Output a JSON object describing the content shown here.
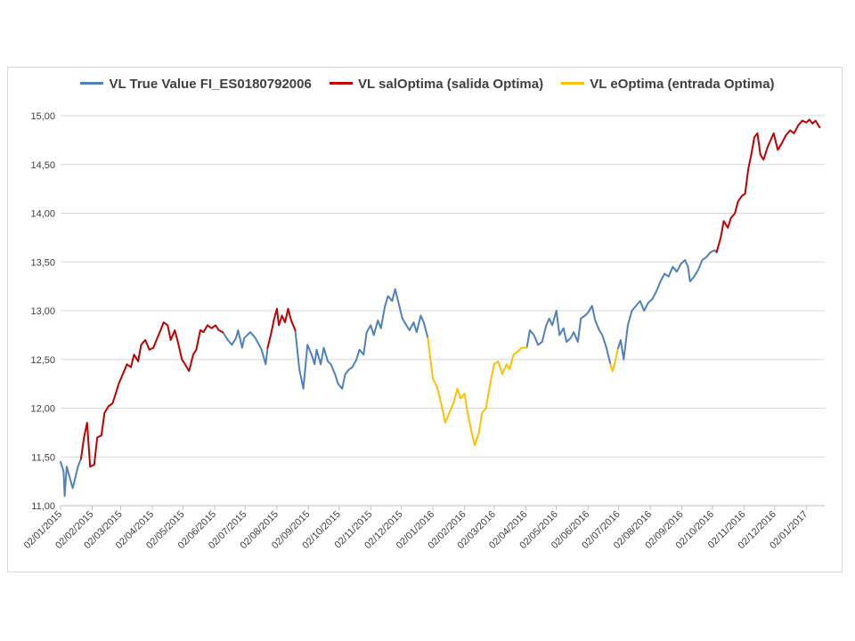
{
  "chart_data": {
    "type": "line",
    "title": "",
    "xlabel": "",
    "ylabel": "",
    "ylim": [
      11.0,
      15.0
    ],
    "y_ticks": [
      "11,00",
      "11,50",
      "12,00",
      "12,50",
      "13,00",
      "13,50",
      "14,00",
      "14,50",
      "15,00"
    ],
    "x_ticks": [
      "02/01/2015",
      "02/02/2015",
      "02/03/2015",
      "02/04/2015",
      "02/05/2015",
      "02/06/2015",
      "02/07/2015",
      "02/08/2015",
      "02/09/2015",
      "02/10/2015",
      "02/11/2015",
      "02/12/2015",
      "02/01/2016",
      "02/02/2016",
      "02/03/2016",
      "02/04/2016",
      "02/05/2016",
      "02/06/2016",
      "02/07/2016",
      "02/08/2016",
      "02/09/2016",
      "02/10/2016",
      "02/11/2016",
      "02/12/2016",
      "02/01/2017"
    ],
    "grid": true,
    "legend_position": "top",
    "series": [
      {
        "name": "VL True Value FI_ES0180792006",
        "color": "#4f81bd",
        "segments": [
          [
            [
              "2015-01-02",
              11.45
            ],
            [
              "2015-01-05",
              11.35
            ],
            [
              "2015-01-06",
              11.1
            ],
            [
              "2015-01-08",
              11.4
            ],
            [
              "2015-01-12",
              11.25
            ],
            [
              "2015-01-14",
              11.18
            ],
            [
              "2015-01-19",
              11.4
            ],
            [
              "2015-01-22",
              11.48
            ]
          ],
          [
            [
              "2015-06-10",
              12.78
            ],
            [
              "2015-06-15",
              12.7
            ],
            [
              "2015-06-19",
              12.65
            ],
            [
              "2015-06-23",
              12.72
            ],
            [
              "2015-06-25",
              12.8
            ],
            [
              "2015-06-29",
              12.62
            ],
            [
              "2015-07-01",
              12.72
            ],
            [
              "2015-07-07",
              12.78
            ],
            [
              "2015-07-12",
              12.72
            ],
            [
              "2015-07-18",
              12.6
            ],
            [
              "2015-07-22",
              12.45
            ],
            [
              "2015-07-24",
              12.62
            ]
          ],
          [
            [
              "2015-08-20",
              12.8
            ],
            [
              "2015-08-24",
              12.4
            ],
            [
              "2015-08-28",
              12.2
            ],
            [
              "2015-09-01",
              12.65
            ],
            [
              "2015-09-05",
              12.55
            ],
            [
              "2015-09-08",
              12.45
            ],
            [
              "2015-09-10",
              12.6
            ],
            [
              "2015-09-14",
              12.45
            ],
            [
              "2015-09-17",
              12.62
            ],
            [
              "2015-09-21",
              12.48
            ],
            [
              "2015-09-24",
              12.45
            ],
            [
              "2015-09-28",
              12.35
            ],
            [
              "2015-10-01",
              12.25
            ],
            [
              "2015-10-05",
              12.2
            ],
            [
              "2015-10-08",
              12.35
            ],
            [
              "2015-10-12",
              12.4
            ],
            [
              "2015-10-15",
              12.42
            ],
            [
              "2015-10-19",
              12.5
            ],
            [
              "2015-10-22",
              12.6
            ],
            [
              "2015-10-26",
              12.55
            ],
            [
              "2015-10-29",
              12.78
            ],
            [
              "2015-11-02",
              12.85
            ],
            [
              "2015-11-05",
              12.75
            ],
            [
              "2015-11-09",
              12.9
            ],
            [
              "2015-11-12",
              12.82
            ],
            [
              "2015-11-16",
              13.05
            ],
            [
              "2015-11-19",
              13.15
            ],
            [
              "2015-11-23",
              13.1
            ],
            [
              "2015-11-26",
              13.22
            ],
            [
              "2015-11-30",
              13.05
            ],
            [
              "2015-12-03",
              12.92
            ],
            [
              "2015-12-07",
              12.85
            ],
            [
              "2015-12-10",
              12.8
            ],
            [
              "2015-12-14",
              12.88
            ],
            [
              "2015-12-17",
              12.78
            ],
            [
              "2015-12-21",
              12.95
            ],
            [
              "2015-12-24",
              12.88
            ],
            [
              "2015-12-28",
              12.72
            ]
          ],
          [
            [
              "2016-04-03",
              12.62
            ],
            [
              "2016-04-06",
              12.8
            ],
            [
              "2016-04-10",
              12.75
            ],
            [
              "2016-04-14",
              12.65
            ],
            [
              "2016-04-18",
              12.68
            ],
            [
              "2016-04-22",
              12.85
            ],
            [
              "2016-04-25",
              12.92
            ],
            [
              "2016-04-28",
              12.85
            ],
            [
              "2016-05-02",
              13.0
            ],
            [
              "2016-05-05",
              12.75
            ],
            [
              "2016-05-09",
              12.82
            ],
            [
              "2016-05-12",
              12.68
            ],
            [
              "2016-05-16",
              12.72
            ],
            [
              "2016-05-19",
              12.78
            ],
            [
              "2016-05-23",
              12.68
            ],
            [
              "2016-05-26",
              12.92
            ],
            [
              "2016-05-30",
              12.95
            ],
            [
              "2016-06-02",
              12.98
            ],
            [
              "2016-06-06",
              13.05
            ],
            [
              "2016-06-09",
              12.9
            ],
            [
              "2016-06-13",
              12.8
            ],
            [
              "2016-06-16",
              12.75
            ],
            [
              "2016-06-20",
              12.62
            ],
            [
              "2016-06-24",
              12.45
            ]
          ],
          [
            [
              "2016-07-01",
              12.6
            ],
            [
              "2016-07-04",
              12.7
            ],
            [
              "2016-07-07",
              12.5
            ],
            [
              "2016-07-11",
              12.85
            ],
            [
              "2016-07-15",
              13.0
            ],
            [
              "2016-07-19",
              13.05
            ],
            [
              "2016-07-23",
              13.1
            ],
            [
              "2016-07-27",
              13.0
            ],
            [
              "2016-07-31",
              13.08
            ],
            [
              "2016-08-04",
              13.12
            ],
            [
              "2016-08-08",
              13.2
            ],
            [
              "2016-08-12",
              13.3
            ],
            [
              "2016-08-16",
              13.38
            ],
            [
              "2016-08-20",
              13.35
            ],
            [
              "2016-08-24",
              13.45
            ],
            [
              "2016-08-28",
              13.4
            ],
            [
              "2016-09-01",
              13.48
            ],
            [
              "2016-09-05",
              13.52
            ],
            [
              "2016-09-08",
              13.45
            ],
            [
              "2016-09-10",
              13.3
            ],
            [
              "2016-09-14",
              13.35
            ],
            [
              "2016-09-18",
              13.42
            ],
            [
              "2016-09-22",
              13.52
            ],
            [
              "2016-09-26",
              13.55
            ],
            [
              "2016-09-30",
              13.6
            ],
            [
              "2016-10-04",
              13.62
            ],
            [
              "2016-10-06",
              13.6
            ]
          ]
        ]
      },
      {
        "name": "VL salOptima (salida Optima)",
        "color": "#c00000",
        "segments": [
          [
            [
              "2015-01-22",
              11.48
            ],
            [
              "2015-01-25",
              11.7
            ],
            [
              "2015-01-28",
              11.85
            ],
            [
              "2015-01-31",
              11.4
            ],
            [
              "2015-02-04",
              11.42
            ],
            [
              "2015-02-07",
              11.7
            ],
            [
              "2015-02-11",
              11.72
            ],
            [
              "2015-02-14",
              11.95
            ],
            [
              "2015-02-18",
              12.02
            ],
            [
              "2015-02-22",
              12.05
            ],
            [
              "2015-02-25",
              12.15
            ],
            [
              "2015-02-28",
              12.25
            ],
            [
              "2015-03-04",
              12.35
            ],
            [
              "2015-03-08",
              12.45
            ],
            [
              "2015-03-12",
              12.42
            ],
            [
              "2015-03-15",
              12.55
            ],
            [
              "2015-03-19",
              12.48
            ],
            [
              "2015-03-22",
              12.65
            ],
            [
              "2015-03-26",
              12.7
            ],
            [
              "2015-03-30",
              12.6
            ],
            [
              "2015-04-03",
              12.62
            ],
            [
              "2015-04-06",
              12.7
            ],
            [
              "2015-04-10",
              12.8
            ],
            [
              "2015-04-13",
              12.88
            ],
            [
              "2015-04-17",
              12.85
            ],
            [
              "2015-04-20",
              12.7
            ],
            [
              "2015-04-24",
              12.8
            ],
            [
              "2015-04-27",
              12.68
            ],
            [
              "2015-05-01",
              12.5
            ],
            [
              "2015-05-04",
              12.45
            ],
            [
              "2015-05-08",
              12.38
            ],
            [
              "2015-05-12",
              12.55
            ],
            [
              "2015-05-15",
              12.6
            ],
            [
              "2015-05-19",
              12.8
            ],
            [
              "2015-05-22",
              12.78
            ],
            [
              "2015-05-26",
              12.85
            ],
            [
              "2015-05-30",
              12.82
            ],
            [
              "2015-06-03",
              12.85
            ],
            [
              "2015-06-06",
              12.8
            ],
            [
              "2015-06-10",
              12.78
            ]
          ],
          [
            [
              "2015-07-24",
              12.62
            ],
            [
              "2015-07-27",
              12.75
            ],
            [
              "2015-07-30",
              12.9
            ],
            [
              "2015-08-02",
              13.02
            ],
            [
              "2015-08-04",
              12.85
            ],
            [
              "2015-08-07",
              12.95
            ],
            [
              "2015-08-10",
              12.88
            ],
            [
              "2015-08-13",
              13.02
            ],
            [
              "2015-08-16",
              12.9
            ],
            [
              "2015-08-20",
              12.8
            ]
          ],
          [
            [
              "2016-10-06",
              13.6
            ],
            [
              "2016-10-10",
              13.75
            ],
            [
              "2016-10-13",
              13.92
            ],
            [
              "2016-10-17",
              13.85
            ],
            [
              "2016-10-20",
              13.95
            ],
            [
              "2016-10-24",
              14.0
            ],
            [
              "2016-10-27",
              14.12
            ],
            [
              "2016-10-31",
              14.18
            ],
            [
              "2016-11-03",
              14.2
            ],
            [
              "2016-11-06",
              14.45
            ],
            [
              "2016-11-09",
              14.6
            ],
            [
              "2016-11-12",
              14.78
            ],
            [
              "2016-11-15",
              14.82
            ],
            [
              "2016-11-18",
              14.6
            ],
            [
              "2016-11-21",
              14.55
            ],
            [
              "2016-11-25",
              14.68
            ],
            [
              "2016-11-28",
              14.75
            ],
            [
              "2016-12-01",
              14.82
            ],
            [
              "2016-12-05",
              14.65
            ],
            [
              "2016-12-09",
              14.72
            ],
            [
              "2016-12-13",
              14.8
            ],
            [
              "2016-12-17",
              14.85
            ],
            [
              "2016-12-21",
              14.82
            ],
            [
              "2016-12-25",
              14.9
            ],
            [
              "2016-12-29",
              14.95
            ],
            [
              "2017-01-02",
              14.93
            ],
            [
              "2017-01-05",
              14.96
            ],
            [
              "2017-01-08",
              14.92
            ],
            [
              "2017-01-11",
              14.95
            ],
            [
              "2017-01-15",
              14.88
            ]
          ]
        ]
      },
      {
        "name": "VL eOptima (entrada Optima)",
        "color": "#ffc000",
        "segments": [
          [
            [
              "2015-12-28",
              12.72
            ],
            [
              "2016-01-02",
              12.3
            ],
            [
              "2016-01-06",
              12.22
            ],
            [
              "2016-01-10",
              12.05
            ],
            [
              "2016-01-14",
              11.85
            ],
            [
              "2016-01-18",
              11.95
            ],
            [
              "2016-01-22",
              12.05
            ],
            [
              "2016-01-26",
              12.2
            ],
            [
              "2016-01-29",
              12.1
            ],
            [
              "2016-02-02",
              12.15
            ],
            [
              "2016-02-05",
              11.95
            ],
            [
              "2016-02-09",
              11.75
            ],
            [
              "2016-02-12",
              11.62
            ],
            [
              "2016-02-16",
              11.75
            ],
            [
              "2016-02-19",
              11.95
            ],
            [
              "2016-02-23",
              12.0
            ],
            [
              "2016-02-27",
              12.25
            ],
            [
              "2016-03-02",
              12.45
            ],
            [
              "2016-03-06",
              12.48
            ],
            [
              "2016-03-10",
              12.35
            ],
            [
              "2016-03-14",
              12.45
            ],
            [
              "2016-03-17",
              12.4
            ],
            [
              "2016-03-21",
              12.55
            ],
            [
              "2016-03-25",
              12.58
            ],
            [
              "2016-03-29",
              12.62
            ],
            [
              "2016-04-03",
              12.62
            ]
          ],
          [
            [
              "2016-06-24",
              12.45
            ],
            [
              "2016-06-26",
              12.38
            ],
            [
              "2016-06-28",
              12.45
            ],
            [
              "2016-07-01",
              12.6
            ]
          ]
        ]
      }
    ]
  }
}
